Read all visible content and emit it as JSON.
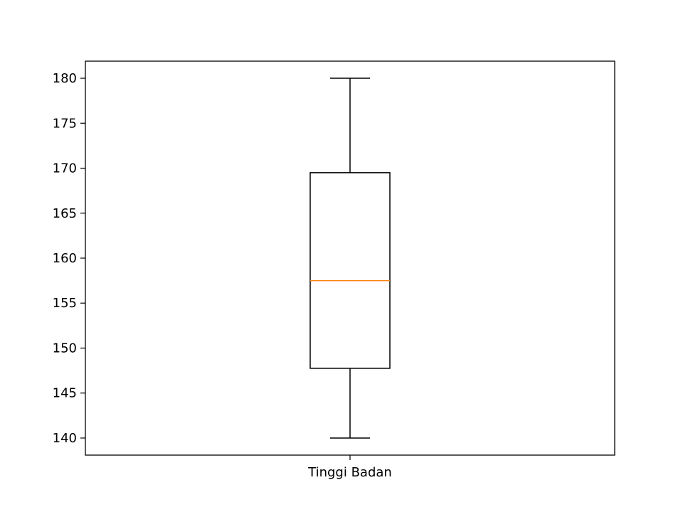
{
  "chart_data": {
    "type": "boxplot",
    "title": "",
    "xlabel": "",
    "ylabel": "",
    "categories": [
      "Tinggi Badan"
    ],
    "boxes": [
      {
        "category": "Tinggi Badan",
        "min": 140,
        "q1": 147.75,
        "median": 157.5,
        "q3": 169.5,
        "max": 180
      }
    ],
    "ylim": [
      138.1,
      181.9
    ],
    "yticks": [
      140,
      145,
      150,
      155,
      160,
      165,
      170,
      175,
      180
    ],
    "ytick_labels": [
      "140",
      "145",
      "150",
      "155",
      "160",
      "165",
      "170",
      "175",
      "180"
    ],
    "grid": false,
    "colors": {
      "box": "#000000",
      "median": "#ff7f0e",
      "frame": "#000000"
    }
  }
}
